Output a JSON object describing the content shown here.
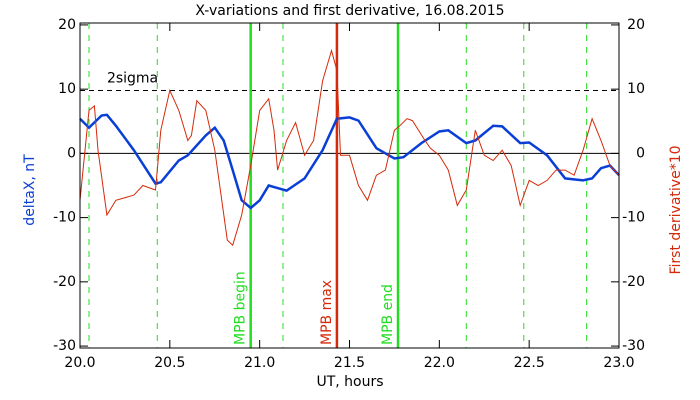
{
  "chart_data": {
    "type": "line",
    "title": "X-variations and first derivative, 16.08.2015",
    "xlabel": "UT, hours",
    "ylabel": "deltaX, nT",
    "y2label": "First derivative*10",
    "xlim": [
      20.0,
      23.0
    ],
    "xticks": [
      {
        "value": 20.0,
        "label": "20.0"
      },
      {
        "value": 20.5,
        "label": "20.5"
      },
      {
        "value": 21.0,
        "label": "21.0"
      },
      {
        "value": 21.5,
        "label": "21.5"
      },
      {
        "value": 22.0,
        "label": "22.0"
      },
      {
        "value": 22.5,
        "label": "22.5"
      },
      {
        "value": 23.0,
        "label": "23.0"
      }
    ],
    "ylim": [
      -30.3,
      20.3
    ],
    "yticks": [
      20,
      10,
      0,
      -10,
      -20,
      -30
    ],
    "y2lim": [
      -30.3,
      20.3
    ],
    "y2ticks": [
      20,
      10,
      0,
      -10,
      -20,
      -30
    ],
    "series": [
      {
        "name": "deltaX",
        "color": "#0a3fd6",
        "axis": "y",
        "x": [
          20.0,
          20.05,
          20.12,
          20.15,
          20.2,
          20.3,
          20.42,
          20.45,
          20.55,
          20.6,
          20.7,
          20.75,
          20.8,
          20.85,
          20.9,
          20.95,
          21.0,
          21.05,
          21.1,
          21.15,
          21.25,
          21.35,
          21.43,
          21.5,
          21.55,
          21.65,
          21.75,
          21.8,
          21.9,
          22.0,
          22.05,
          22.15,
          22.2,
          22.3,
          22.35,
          22.45,
          22.5,
          22.6,
          22.7,
          22.8,
          22.85,
          22.9,
          22.95,
          23.0
        ],
        "values": [
          5.4,
          4.0,
          5.9,
          6.0,
          4.3,
          0.5,
          -4.7,
          -4.5,
          -1.1,
          -0.3,
          2.8,
          4.0,
          2.0,
          -2.6,
          -7.3,
          -8.5,
          -7.3,
          -5.0,
          -5.4,
          -5.8,
          -3.9,
          0.5,
          5.4,
          5.6,
          5.1,
          0.8,
          -0.8,
          -0.6,
          1.6,
          3.4,
          3.6,
          1.6,
          2.0,
          4.3,
          4.2,
          1.6,
          1.7,
          -0.3,
          -3.9,
          -4.2,
          -3.9,
          -2.3,
          -1.9,
          -3.4
        ]
      },
      {
        "name": "First derivative*10",
        "color": "#d42a0a",
        "axis": "y2",
        "x": [
          20.0,
          20.05,
          20.08,
          20.1,
          20.15,
          20.2,
          20.3,
          20.35,
          20.42,
          20.45,
          20.5,
          20.55,
          20.6,
          20.62,
          20.65,
          20.7,
          20.75,
          20.82,
          20.85,
          20.9,
          20.95,
          21.0,
          21.05,
          21.08,
          21.1,
          21.15,
          21.2,
          21.25,
          21.3,
          21.35,
          21.4,
          21.43,
          21.45,
          21.5,
          21.55,
          21.6,
          21.65,
          21.7,
          21.75,
          21.78,
          21.82,
          21.85,
          21.92,
          21.95,
          22.0,
          22.05,
          22.1,
          22.15,
          22.2,
          22.25,
          22.3,
          22.35,
          22.4,
          22.45,
          22.5,
          22.55,
          22.6,
          22.65,
          22.7,
          22.75,
          22.8,
          22.85,
          22.9,
          22.95,
          23.0
        ],
        "values": [
          -7.3,
          6.7,
          7.4,
          0.5,
          -9.6,
          -7.3,
          -6.5,
          -5.0,
          -5.7,
          3.6,
          9.8,
          6.7,
          2.0,
          2.8,
          8.2,
          6.7,
          0.5,
          -13.5,
          -14.3,
          -9.6,
          -1.9,
          6.7,
          8.5,
          3.6,
          -2.6,
          2.0,
          4.8,
          -0.3,
          2.0,
          11.3,
          16.0,
          12.9,
          -0.3,
          -0.3,
          -5.0,
          -7.3,
          -3.4,
          -2.6,
          3.6,
          4.3,
          5.4,
          5.1,
          2.0,
          0.8,
          -0.3,
          -2.6,
          -8.1,
          -5.7,
          3.6,
          -0.3,
          -1.1,
          0.5,
          -1.9,
          -8.1,
          -4.2,
          -5.0,
          -4.2,
          -2.6,
          -2.6,
          -3.4,
          0.5,
          5.4,
          2.0,
          -1.9,
          -3.4
        ]
      }
    ],
    "hlines": [
      {
        "y": 0,
        "color": "#000000",
        "dashed": false
      },
      {
        "y": 9.8,
        "color": "#000000",
        "dashed": true,
        "label": "2sigma"
      }
    ],
    "vlines": [
      {
        "x": 20.05,
        "color": "#22dd22",
        "dashed": true
      },
      {
        "x": 20.43,
        "color": "#22dd22",
        "dashed": true
      },
      {
        "x": 20.95,
        "color": "#22dd22",
        "dashed": false,
        "label": "MPB begin"
      },
      {
        "x": 21.13,
        "color": "#22dd22",
        "dashed": true
      },
      {
        "x": 21.43,
        "color": "#d42a0a",
        "dashed": false,
        "label": "MPB max"
      },
      {
        "x": 21.77,
        "color": "#22dd22",
        "dashed": false,
        "label": "MPB end"
      },
      {
        "x": 22.15,
        "color": "#22dd22",
        "dashed": true
      },
      {
        "x": 22.47,
        "color": "#22dd22",
        "dashed": true
      },
      {
        "x": 22.82,
        "color": "#22dd22",
        "dashed": true
      }
    ]
  }
}
